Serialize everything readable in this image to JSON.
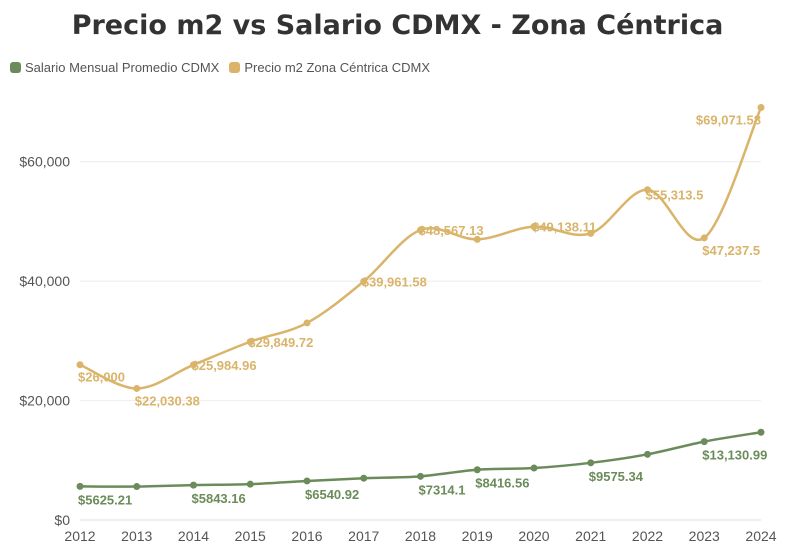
{
  "chart_data": {
    "type": "line",
    "title": "Precio m2 vs Salario CDMX - Zona Céntrica",
    "xlabel": "",
    "ylabel": "",
    "categories": [
      "2012",
      "2013",
      "2014",
      "2015",
      "2016",
      "2017",
      "2018",
      "2019",
      "2020",
      "2021",
      "2022",
      "2023",
      "2024"
    ],
    "ylim": [
      0,
      70000
    ],
    "yticks": [
      0,
      20000,
      40000,
      60000
    ],
    "ytick_labels": [
      "$0",
      "$20,000",
      "$40,000",
      "$60,000"
    ],
    "legend_position": "top-left",
    "series": [
      {
        "name": "Salario Mensual Promedio CDMX",
        "color": "#6b8c5a",
        "values": [
          5625.21,
          5600,
          5843.16,
          6000,
          6540.92,
          7000,
          7314.1,
          8416.56,
          8700,
          9575.34,
          11000,
          13130.99,
          14700
        ],
        "labels": [
          "$5625.21",
          "",
          "$5843.16",
          "",
          "$6540.92",
          "",
          "$7314.1",
          "$8416.56",
          "",
          "$9575.34",
          "",
          "$13,130.99",
          ""
        ]
      },
      {
        "name": "Precio m2 Zona Céntrica CDMX",
        "color": "#d9b46a",
        "values": [
          26000,
          22030.38,
          25984.96,
          29849.72,
          33000,
          39961.58,
          48567.13,
          47000,
          49138.11,
          48000,
          55313.5,
          47237.5,
          69071.58
        ],
        "labels": [
          "$26,000",
          "$22,030.38",
          "$25,984.96",
          "$29,849.72",
          "",
          "$39,961.58",
          "$48,567.13",
          "",
          "$49,138.11",
          "",
          "$55,313.5",
          "$47,237.5",
          "$69,071.58"
        ]
      }
    ]
  }
}
